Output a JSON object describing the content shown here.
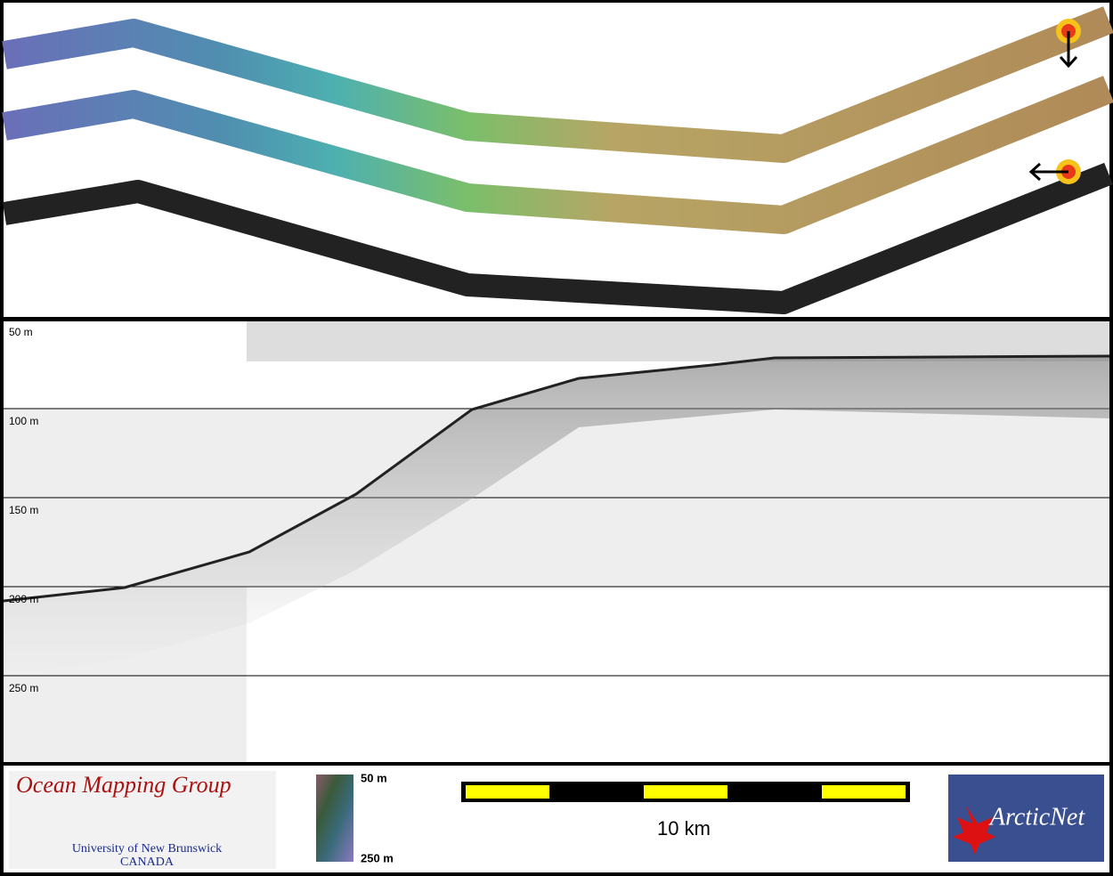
{
  "profile": {
    "depth_labels": [
      "50 m",
      "100 m",
      "150 m",
      "200 m",
      "250 m"
    ]
  },
  "logo": {
    "title": "Ocean Mapping Group",
    "university": "University of New Brunswick",
    "country": "CANADA"
  },
  "colorbar": {
    "top_label": "50 m",
    "bottom_label": "250 m"
  },
  "scale_bar": {
    "label": "10 km"
  },
  "partner_logo": {
    "name": "ArcticNet"
  }
}
